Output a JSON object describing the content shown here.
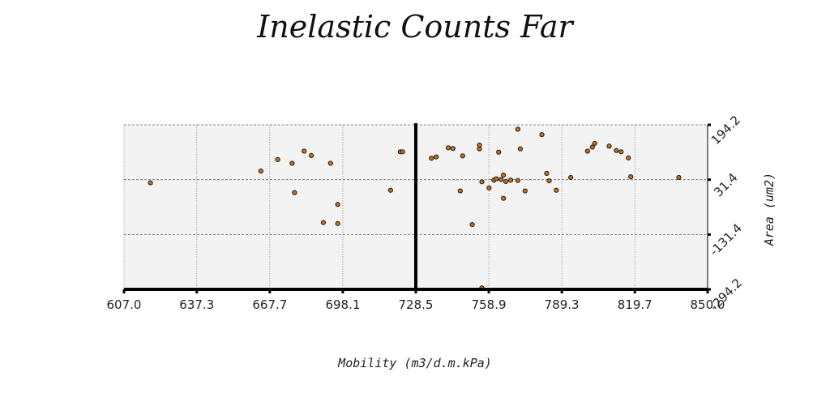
{
  "chart_data": {
    "type": "scatter",
    "title": "Inelastic Counts Far",
    "xlabel": "Mobility (m3/d.m.kPa)",
    "ylabel": "Area (um2)",
    "xlim": [
      607.0,
      850.0
    ],
    "ylim": [
      -294.2,
      194.2
    ],
    "x_ticks": [
      "607.0",
      "637.3",
      "667.7",
      "698.1",
      "728.5",
      "758.9",
      "789.3",
      "819.7",
      "850.0"
    ],
    "y_ticks": [
      "-294.2",
      "-131.4",
      "31.4",
      "194.2"
    ],
    "grid": true,
    "vertical_marker_x": 728.5,
    "marker_color": "#b8732e",
    "points": [
      {
        "x": 618,
        "y": 22
      },
      {
        "x": 664,
        "y": 57
      },
      {
        "x": 671,
        "y": 91
      },
      {
        "x": 677,
        "y": 80
      },
      {
        "x": 678,
        "y": -7
      },
      {
        "x": 682,
        "y": 116
      },
      {
        "x": 685,
        "y": 103
      },
      {
        "x": 690,
        "y": -96
      },
      {
        "x": 693,
        "y": 80
      },
      {
        "x": 696,
        "y": -42
      },
      {
        "x": 696,
        "y": -99
      },
      {
        "x": 718,
        "y": 0
      },
      {
        "x": 722,
        "y": 114
      },
      {
        "x": 723,
        "y": 114
      },
      {
        "x": 735,
        "y": 95
      },
      {
        "x": 737,
        "y": 99
      },
      {
        "x": 742,
        "y": 126
      },
      {
        "x": 744,
        "y": 124
      },
      {
        "x": 747,
        "y": -2
      },
      {
        "x": 748,
        "y": 102
      },
      {
        "x": 752,
        "y": -102
      },
      {
        "x": 755,
        "y": 123
      },
      {
        "x": 755,
        "y": 134
      },
      {
        "x": 756,
        "y": 25
      },
      {
        "x": 756,
        "y": -290
      },
      {
        "x": 759,
        "y": 7
      },
      {
        "x": 761,
        "y": 30
      },
      {
        "x": 762,
        "y": 34
      },
      {
        "x": 763,
        "y": 113
      },
      {
        "x": 764,
        "y": 32
      },
      {
        "x": 765,
        "y": 45
      },
      {
        "x": 765,
        "y": -24
      },
      {
        "x": 766,
        "y": 26
      },
      {
        "x": 768,
        "y": 30
      },
      {
        "x": 771,
        "y": 29
      },
      {
        "x": 771,
        "y": 181
      },
      {
        "x": 772,
        "y": 123
      },
      {
        "x": 774,
        "y": -2
      },
      {
        "x": 781,
        "y": 165
      },
      {
        "x": 783,
        "y": 50
      },
      {
        "x": 784,
        "y": 28
      },
      {
        "x": 787,
        "y": 0
      },
      {
        "x": 793,
        "y": 38
      },
      {
        "x": 800,
        "y": 116
      },
      {
        "x": 802,
        "y": 128
      },
      {
        "x": 803,
        "y": 139
      },
      {
        "x": 809,
        "y": 131
      },
      {
        "x": 812,
        "y": 118
      },
      {
        "x": 814,
        "y": 114
      },
      {
        "x": 817,
        "y": 96
      },
      {
        "x": 818,
        "y": 40
      },
      {
        "x": 838,
        "y": 38
      }
    ]
  }
}
